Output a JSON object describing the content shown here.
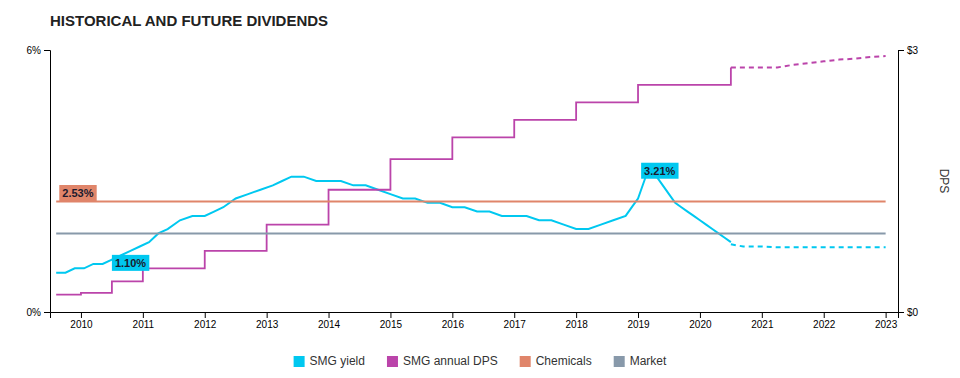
{
  "chart_data": {
    "type": "line",
    "title": "HISTORICAL AND FUTURE DIVIDENDS",
    "xlim": [
      2009.5,
      2023.2
    ],
    "xticks": [
      2010,
      2011,
      2012,
      2013,
      2014,
      2015,
      2016,
      2017,
      2018,
      2019,
      2020,
      2021,
      2022,
      2023
    ],
    "ylim": [
      0,
      0.06
    ],
    "yticks": [
      {
        "value": 0,
        "label": "0%"
      },
      {
        "value": 0.06,
        "label": "6%"
      }
    ],
    "y2lim": [
      0,
      3.0
    ],
    "y2ticks": [
      {
        "value": 0,
        "label": "$0"
      },
      {
        "value": 3.0,
        "label": "$3"
      }
    ],
    "y2label": "DPS",
    "grid": false,
    "legend": "bottom",
    "series": [
      {
        "name": "SMG yield",
        "type": "line",
        "color": "#00c8f0",
        "line_style": "solid",
        "x": [
          2009.6,
          2009.75,
          2009.9,
          2010.05,
          2010.2,
          2010.35,
          2010.5,
          2010.65,
          2010.8,
          2010.95,
          2011.1,
          2011.25,
          2011.4,
          2011.6,
          2011.8,
          2012.0,
          2012.15,
          2012.3,
          2012.5,
          2012.7,
          2012.9,
          2013.1,
          2013.25,
          2013.4,
          2013.6,
          2013.8,
          2014.0,
          2014.2,
          2014.4,
          2014.6,
          2014.8,
          2015.0,
          2015.2,
          2015.4,
          2015.6,
          2015.8,
          2016.0,
          2016.2,
          2016.4,
          2016.6,
          2016.8,
          2017.0,
          2017.2,
          2017.4,
          2017.6,
          2017.8,
          2018.0,
          2018.2,
          2018.4,
          2018.6,
          2018.8,
          2018.9,
          2019.0,
          2019.05,
          2019.1,
          2019.15,
          2019.2,
          2019.3,
          2019.4,
          2019.5,
          2019.6,
          2019.7,
          2019.8,
          2019.9,
          2020.0,
          2020.1,
          2020.2,
          2020.3,
          2020.4,
          2020.5
        ],
        "values": [
          0.009,
          0.009,
          0.01,
          0.01,
          0.011,
          0.011,
          0.012,
          0.013,
          0.014,
          0.015,
          0.016,
          0.018,
          0.019,
          0.021,
          0.022,
          0.022,
          0.023,
          0.024,
          0.026,
          0.027,
          0.028,
          0.029,
          0.03,
          0.031,
          0.031,
          0.03,
          0.03,
          0.03,
          0.029,
          0.029,
          0.028,
          0.027,
          0.026,
          0.026,
          0.025,
          0.025,
          0.024,
          0.024,
          0.023,
          0.023,
          0.022,
          0.022,
          0.022,
          0.021,
          0.021,
          0.02,
          0.019,
          0.019,
          0.02,
          0.021,
          0.022,
          0.024,
          0.026,
          0.028,
          0.03,
          0.032,
          0.033,
          0.031,
          0.029,
          0.027,
          0.025,
          0.024,
          0.023,
          0.022,
          0.021,
          0.02,
          0.019,
          0.018,
          0.017,
          0.016
        ]
      },
      {
        "type": "line",
        "color": "#00c8f0",
        "line_style": "dashed",
        "x": [
          2020.5,
          2020.7,
          2021.0,
          2021.3,
          2021.6,
          2021.9,
          2022.2,
          2022.5,
          2022.8,
          2023.0
        ],
        "values": [
          0.0155,
          0.015,
          0.015,
          0.0148,
          0.0148,
          0.0148,
          0.0148,
          0.0148,
          0.0148,
          0.0148
        ]
      },
      {
        "name": "SMG annual DPS",
        "type": "step",
        "axis": "y2",
        "color": "#bb44aa",
        "line_style": "solid",
        "x": [
          2009.6,
          2009.75,
          2010.0,
          2010.25,
          2010.5,
          2010.5,
          2010.75,
          2011.0,
          2011.0,
          2011.25,
          2011.5,
          2011.75,
          2012.0,
          2012.0,
          2012.25,
          2012.5,
          2012.75,
          2013.0,
          2013.0,
          2013.25,
          2013.5,
          2013.75,
          2014.0,
          2014.0,
          2014.25,
          2014.5,
          2014.75,
          2015.0,
          2015.0,
          2015.25,
          2015.5,
          2015.75,
          2016.0,
          2016.0,
          2016.25,
          2016.5,
          2016.75,
          2017.0,
          2017.0,
          2017.25,
          2017.5,
          2017.75,
          2018.0,
          2018.0,
          2018.25,
          2018.5,
          2018.75,
          2019.0,
          2019.0,
          2019.25,
          2019.5,
          2019.75,
          2020.0,
          2020.25,
          2020.5
        ],
        "values": [
          0.2,
          0.2,
          0.22,
          0.22,
          0.22,
          0.35,
          0.35,
          0.35,
          0.5,
          0.5,
          0.5,
          0.5,
          0.5,
          0.7,
          0.7,
          0.7,
          0.7,
          0.7,
          1.0,
          1.0,
          1.0,
          1.0,
          1.0,
          1.4,
          1.4,
          1.4,
          1.4,
          1.4,
          1.75,
          1.75,
          1.75,
          1.75,
          1.75,
          2.0,
          2.0,
          2.0,
          2.0,
          2.0,
          2.2,
          2.2,
          2.2,
          2.2,
          2.2,
          2.4,
          2.4,
          2.4,
          2.4,
          2.4,
          2.6,
          2.6,
          2.6,
          2.6,
          2.6,
          2.6,
          2.8
        ]
      },
      {
        "type": "line",
        "axis": "y2",
        "color": "#bb44aa",
        "line_style": "dashed",
        "x": [
          2020.5,
          2020.75,
          2021.0,
          2021.25,
          2021.5,
          2021.75,
          2022.0,
          2022.25,
          2022.5,
          2022.75,
          2023.0
        ],
        "values": [
          2.8,
          2.8,
          2.8,
          2.8,
          2.83,
          2.85,
          2.87,
          2.89,
          2.9,
          2.92,
          2.93
        ]
      },
      {
        "name": "Chemicals",
        "type": "line",
        "color": "#e0856a",
        "line_style": "solid",
        "x": [
          2009.6,
          2023.0
        ],
        "values": [
          0.0253,
          0.0253
        ]
      },
      {
        "name": "Market",
        "type": "line",
        "color": "#8899aa",
        "line_style": "solid",
        "x": [
          2009.6,
          2023.0
        ],
        "values": [
          0.018,
          0.018
        ]
      }
    ],
    "annotations": [
      {
        "text": "3.21%",
        "x": 2019.05,
        "y": 0.0321,
        "color": "#00c8f0"
      },
      {
        "text": "1.10%",
        "x": 2010.5,
        "y": 0.011,
        "color": "#00c8f0"
      },
      {
        "text": "2.53%",
        "x": 2009.65,
        "y": 0.027,
        "color": "#e0856a"
      }
    ]
  }
}
